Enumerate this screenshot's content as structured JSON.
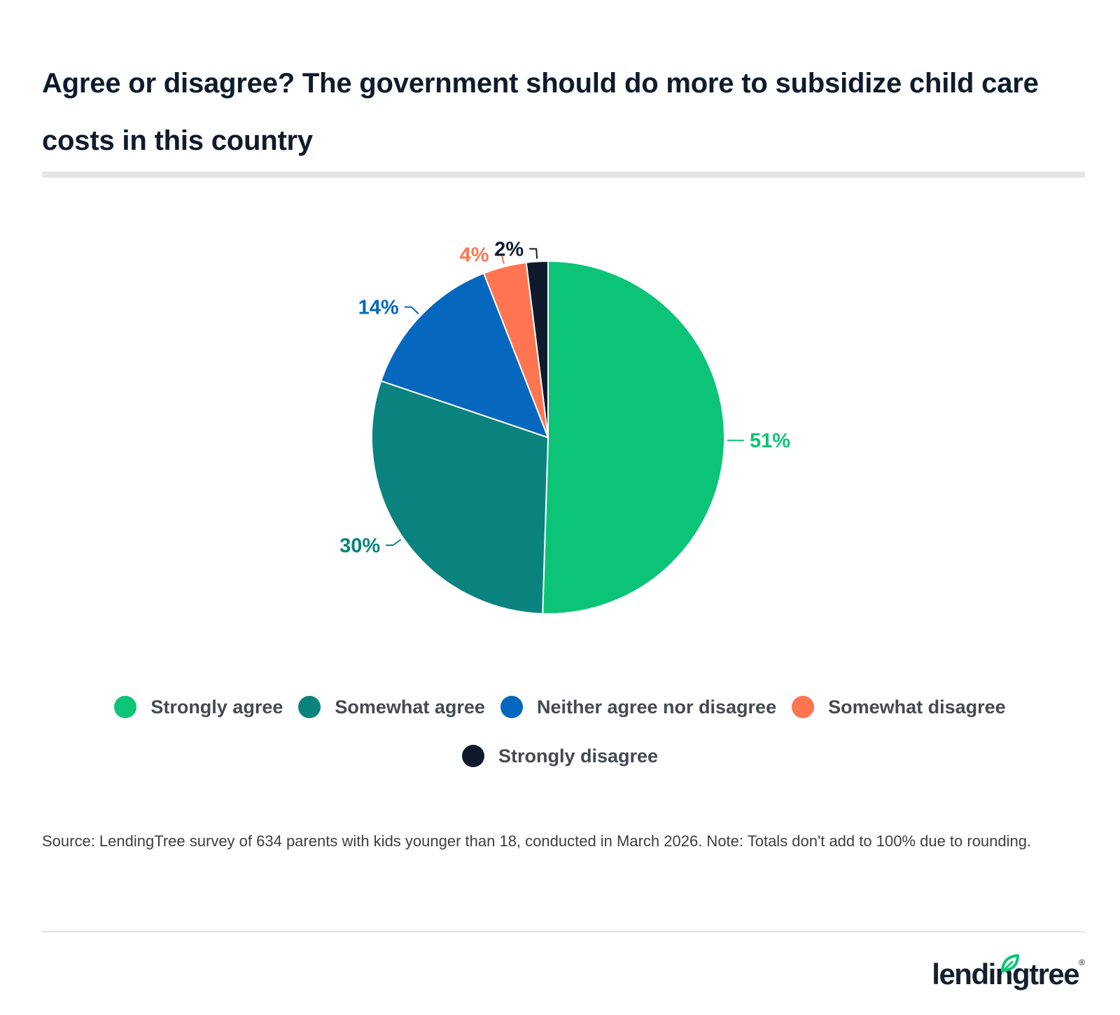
{
  "header": {
    "title": "Agree or disagree? The government should do more to subsidize child care costs in this country"
  },
  "chart_data": {
    "type": "pie",
    "title": "Agree or disagree? The government should do more to subsidize child care costs in this country",
    "start_angle_deg": 0,
    "direction": "clockwise",
    "slices": [
      {
        "label": "Strongly agree",
        "value": 51,
        "display": "51%",
        "color": "#0cc477"
      },
      {
        "label": "Somewhat agree",
        "value": 30,
        "display": "30%",
        "color": "#0a837f"
      },
      {
        "label": "Neither agree nor disagree",
        "value": 14,
        "display": "14%",
        "color": "#0667be"
      },
      {
        "label": "Somewhat disagree",
        "value": 4,
        "display": "4%",
        "color": "#ff7551"
      },
      {
        "label": "Strongly disagree",
        "value": 2,
        "display": "2%",
        "color": "#0f1b2d"
      }
    ],
    "legend_placement": "bottom"
  },
  "legend": {
    "items": [
      {
        "label": "Strongly agree",
        "color": "#0cc477"
      },
      {
        "label": "Somewhat agree",
        "color": "#0a837f"
      },
      {
        "label": "Neither agree nor disagree",
        "color": "#0667be"
      },
      {
        "label": "Somewhat disagree",
        "color": "#ff7551"
      },
      {
        "label": "Strongly disagree",
        "color": "#0f1b2d"
      }
    ]
  },
  "footer": {
    "source": "Source: LendingTree survey of 634 parents with kids younger than 18, conducted in March 2026. Note: Totals don't add to 100% due to rounding.",
    "logo_text": "lendingtree",
    "logo_mark": "®",
    "logo_icon": "leaf-icon",
    "logo_color": "#14202e",
    "leaf_color": "#0cc477"
  }
}
